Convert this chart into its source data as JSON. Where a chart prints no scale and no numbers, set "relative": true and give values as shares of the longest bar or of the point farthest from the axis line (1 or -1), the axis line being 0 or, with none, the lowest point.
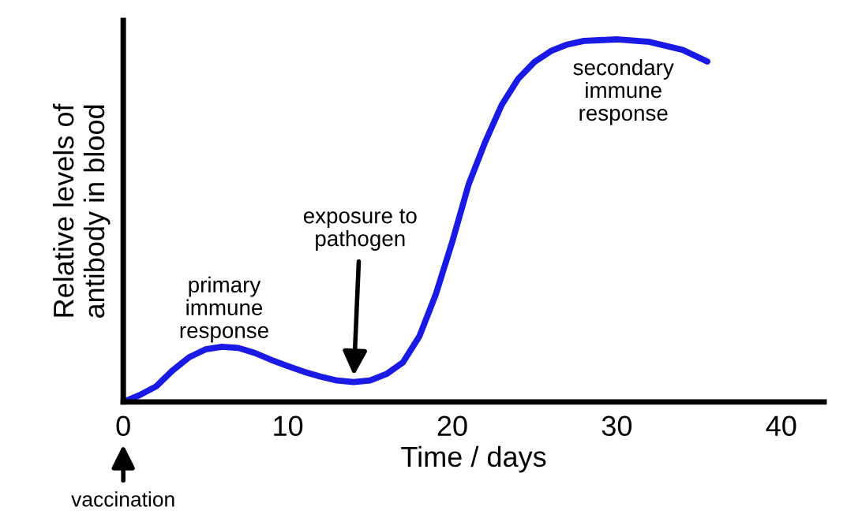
{
  "chart_data": {
    "type": "line",
    "relative": true,
    "xlabel": "Time / days",
    "ylabel": "Relative levels of\nantibody in blood",
    "xlim": [
      0,
      42.6
    ],
    "xticks": [
      0,
      10,
      20,
      30,
      40
    ],
    "grid": false,
    "legend": false,
    "marker": "none",
    "line_style": "solid",
    "series": [
      {
        "color": "#1a1ae6",
        "x": [
          0,
          1,
          2,
          3,
          4,
          5,
          6,
          7,
          8,
          9,
          10,
          11,
          12,
          13,
          14,
          15,
          16,
          17,
          18,
          19,
          20,
          21,
          22,
          23,
          24,
          25,
          26,
          27,
          28,
          30,
          32,
          34,
          35.5
        ],
        "values": [
          0,
          0.019,
          0.043,
          0.087,
          0.123,
          0.145,
          0.152,
          0.149,
          0.135,
          0.116,
          0.099,
          0.083,
          0.07,
          0.059,
          0.055,
          0.059,
          0.077,
          0.109,
          0.181,
          0.297,
          0.442,
          0.601,
          0.717,
          0.819,
          0.891,
          0.938,
          0.968,
          0.986,
          0.996,
          1.0,
          0.993,
          0.971,
          0.939
        ]
      }
    ],
    "annotations": [
      {
        "text": "primary\nimmune\nresponse",
        "x": 6,
        "y": 0.152
      },
      {
        "text": "exposure to\npathogen",
        "x": 14,
        "y": 0.055
      },
      {
        "text": "secondary\nimmune\nresponse",
        "x": 30,
        "y": 1.0
      },
      "vaccination"
    ]
  }
}
